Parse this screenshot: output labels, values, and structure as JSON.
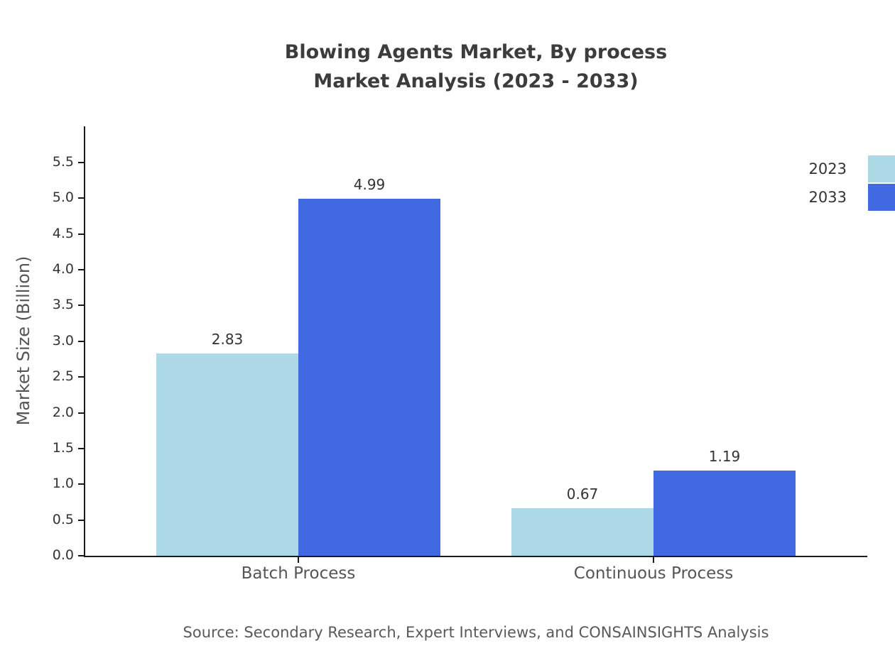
{
  "title": "Blowing Agents Market, By process",
  "subtitle": "Market Analysis (2023 - 2033)",
  "source": "Source: Secondary Research, Expert Interviews, and CONSAINSIGHTS Analysis",
  "chart_data": {
    "type": "bar",
    "title": "Blowing Agents Market, By process — Market Analysis (2023 - 2033)",
    "categories": [
      "Batch Process",
      "Continuous Process"
    ],
    "series": [
      {
        "name": "2023",
        "color": "#ADD8E6",
        "values": [
          2.83,
          0.67
        ]
      },
      {
        "name": "2033",
        "color": "#4169E1",
        "values": [
          4.99,
          1.19
        ]
      }
    ],
    "value_labels": [
      [
        "2.83",
        "0.67"
      ],
      [
        "4.99",
        "1.19"
      ]
    ],
    "xlabel": "",
    "ylabel": "Market Size (Billion)",
    "ylim": [
      0,
      5.5
    ],
    "ytick_step": 0.5,
    "yticks": [
      "0.0",
      "0.5",
      "1.0",
      "1.5",
      "2.0",
      "2.5",
      "3.0",
      "3.5",
      "4.0",
      "4.5",
      "5.0",
      "5.5"
    ],
    "grid": false,
    "legend_position": "top-right"
  }
}
